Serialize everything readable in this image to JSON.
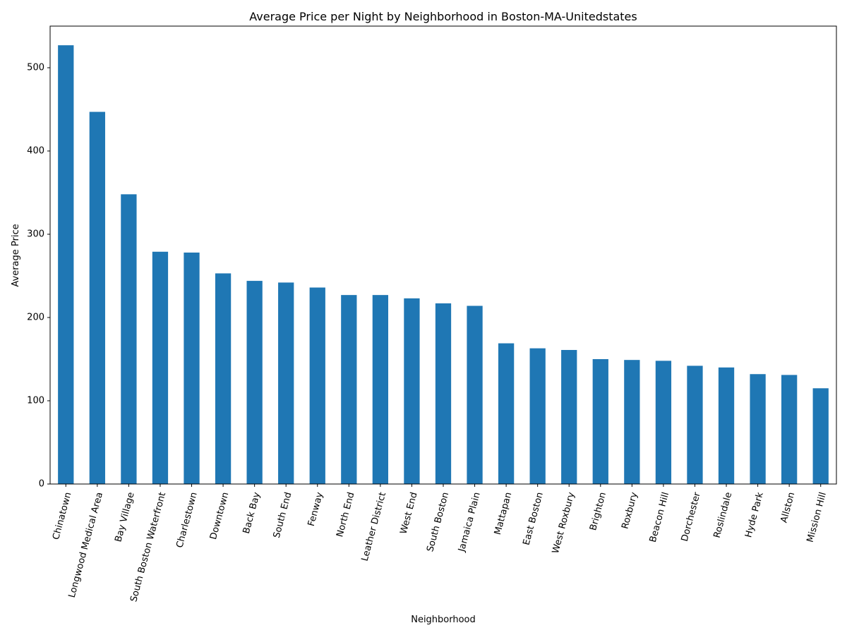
{
  "chart_data": {
    "type": "bar",
    "title": "Average Price per Night by Neighborhood in Boston-MA-Unitedstates",
    "xlabel": "Neighborhood",
    "ylabel": "Average Price",
    "ylim": [
      0,
      550
    ],
    "yticks": [
      0,
      100,
      200,
      300,
      400,
      500
    ],
    "grid": false,
    "legend": "none",
    "bar_color": "#1f77b4",
    "categories": [
      "Chinatown",
      "Longwood Medical Area",
      "Bay Village",
      "South Boston Waterfront",
      "Charlestown",
      "Downtown",
      "Back Bay",
      "South End",
      "Fenway",
      "North End",
      "Leather District",
      "West End",
      "South Boston",
      "Jamaica Plain",
      "Mattapan",
      "East Boston",
      "West Roxbury",
      "Brighton",
      "Roxbury",
      "Beacon Hill",
      "Dorchester",
      "Roslindale",
      "Hyde Park",
      "Allston",
      "Mission Hill"
    ],
    "values": [
      527,
      447,
      348,
      279,
      278,
      253,
      244,
      242,
      236,
      227,
      227,
      223,
      217,
      214,
      169,
      163,
      161,
      150,
      149,
      148,
      142,
      140,
      132,
      131,
      115
    ]
  }
}
